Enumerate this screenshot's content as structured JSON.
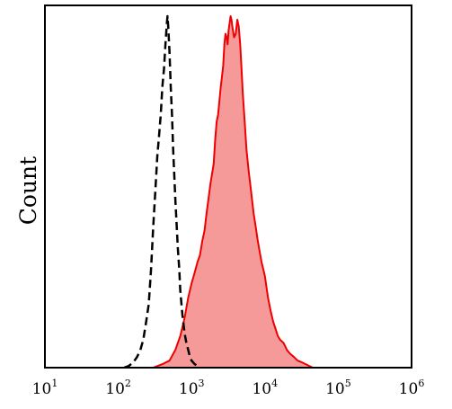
{
  "chart_data": {
    "type": "area",
    "title": "",
    "xlabel": "",
    "ylabel": "Count",
    "x_scale": "log",
    "xlim": [
      10,
      1000000
    ],
    "ylim": [
      0,
      100
    ],
    "grid": false,
    "legend": "none",
    "x_ticks": [
      {
        "base": "10",
        "exp": "1"
      },
      {
        "base": "10",
        "exp": "2"
      },
      {
        "base": "10",
        "exp": "3"
      },
      {
        "base": "10",
        "exp": "4"
      },
      {
        "base": "10",
        "exp": "5"
      },
      {
        "base": "10",
        "exp": "6"
      }
    ],
    "x_tick_values": [
      10,
      100,
      1000,
      10000,
      100000,
      1000000
    ],
    "series": [
      {
        "style": "dashed",
        "line_color": "#000000",
        "fill_color": "none",
        "points": [
          [
            120,
            0
          ],
          [
            140,
            0.5
          ],
          [
            160,
            1.5
          ],
          [
            180,
            3
          ],
          [
            200,
            5
          ],
          [
            220,
            8
          ],
          [
            240,
            13
          ],
          [
            260,
            18
          ],
          [
            280,
            28
          ],
          [
            300,
            40
          ],
          [
            320,
            50
          ],
          [
            340,
            60
          ],
          [
            360,
            66
          ],
          [
            380,
            72
          ],
          [
            400,
            80
          ],
          [
            420,
            85
          ],
          [
            440,
            92
          ],
          [
            460,
            98
          ],
          [
            470,
            100
          ],
          [
            480,
            97
          ],
          [
            500,
            90
          ],
          [
            520,
            80
          ],
          [
            540,
            72
          ],
          [
            560,
            62
          ],
          [
            580,
            55
          ],
          [
            600,
            48
          ],
          [
            620,
            42
          ],
          [
            650,
            34
          ],
          [
            680,
            28
          ],
          [
            700,
            22
          ],
          [
            750,
            15
          ],
          [
            800,
            10
          ],
          [
            850,
            7
          ],
          [
            900,
            5
          ],
          [
            950,
            3
          ],
          [
            1000,
            2
          ],
          [
            1100,
            1
          ],
          [
            1200,
            0.5
          ],
          [
            1300,
            0
          ]
        ]
      },
      {
        "style": "solid",
        "line_color": "#ee0000",
        "fill_color": "#f59999",
        "points": [
          [
            300,
            0
          ],
          [
            400,
            1
          ],
          [
            500,
            2
          ],
          [
            600,
            5
          ],
          [
            700,
            9
          ],
          [
            800,
            14
          ],
          [
            900,
            20
          ],
          [
            1000,
            24
          ],
          [
            1100,
            27
          ],
          [
            1200,
            30
          ],
          [
            1300,
            32
          ],
          [
            1400,
            36
          ],
          [
            1500,
            39
          ],
          [
            1600,
            44
          ],
          [
            1700,
            48
          ],
          [
            1800,
            52
          ],
          [
            1900,
            55
          ],
          [
            2000,
            58
          ],
          [
            2100,
            65
          ],
          [
            2200,
            70
          ],
          [
            2300,
            72
          ],
          [
            2400,
            76
          ],
          [
            2500,
            80
          ],
          [
            2600,
            83
          ],
          [
            2700,
            86
          ],
          [
            2800,
            92
          ],
          [
            2900,
            95
          ],
          [
            3000,
            94
          ],
          [
            3100,
            92
          ],
          [
            3200,
            96
          ],
          [
            3300,
            98
          ],
          [
            3400,
            100
          ],
          [
            3500,
            99
          ],
          [
            3600,
            97
          ],
          [
            3800,
            94
          ],
          [
            4000,
            95
          ],
          [
            4200,
            99
          ],
          [
            4400,
            97
          ],
          [
            4600,
            92
          ],
          [
            4800,
            85
          ],
          [
            5000,
            78
          ],
          [
            5300,
            70
          ],
          [
            5600,
            62
          ],
          [
            6000,
            56
          ],
          [
            6500,
            50
          ],
          [
            7000,
            44
          ],
          [
            7500,
            40
          ],
          [
            8000,
            36
          ],
          [
            8500,
            33
          ],
          [
            9000,
            30
          ],
          [
            9500,
            28
          ],
          [
            10000,
            26
          ],
          [
            11000,
            20
          ],
          [
            12000,
            16
          ],
          [
            13000,
            13
          ],
          [
            14000,
            11
          ],
          [
            15000,
            9
          ],
          [
            16000,
            8
          ],
          [
            18000,
            7
          ],
          [
            20000,
            5
          ],
          [
            22000,
            4
          ],
          [
            25000,
            3
          ],
          [
            28000,
            2
          ],
          [
            32000,
            1.5
          ],
          [
            36000,
            1
          ],
          [
            40000,
            0.5
          ],
          [
            45000,
            0
          ]
        ]
      }
    ]
  }
}
